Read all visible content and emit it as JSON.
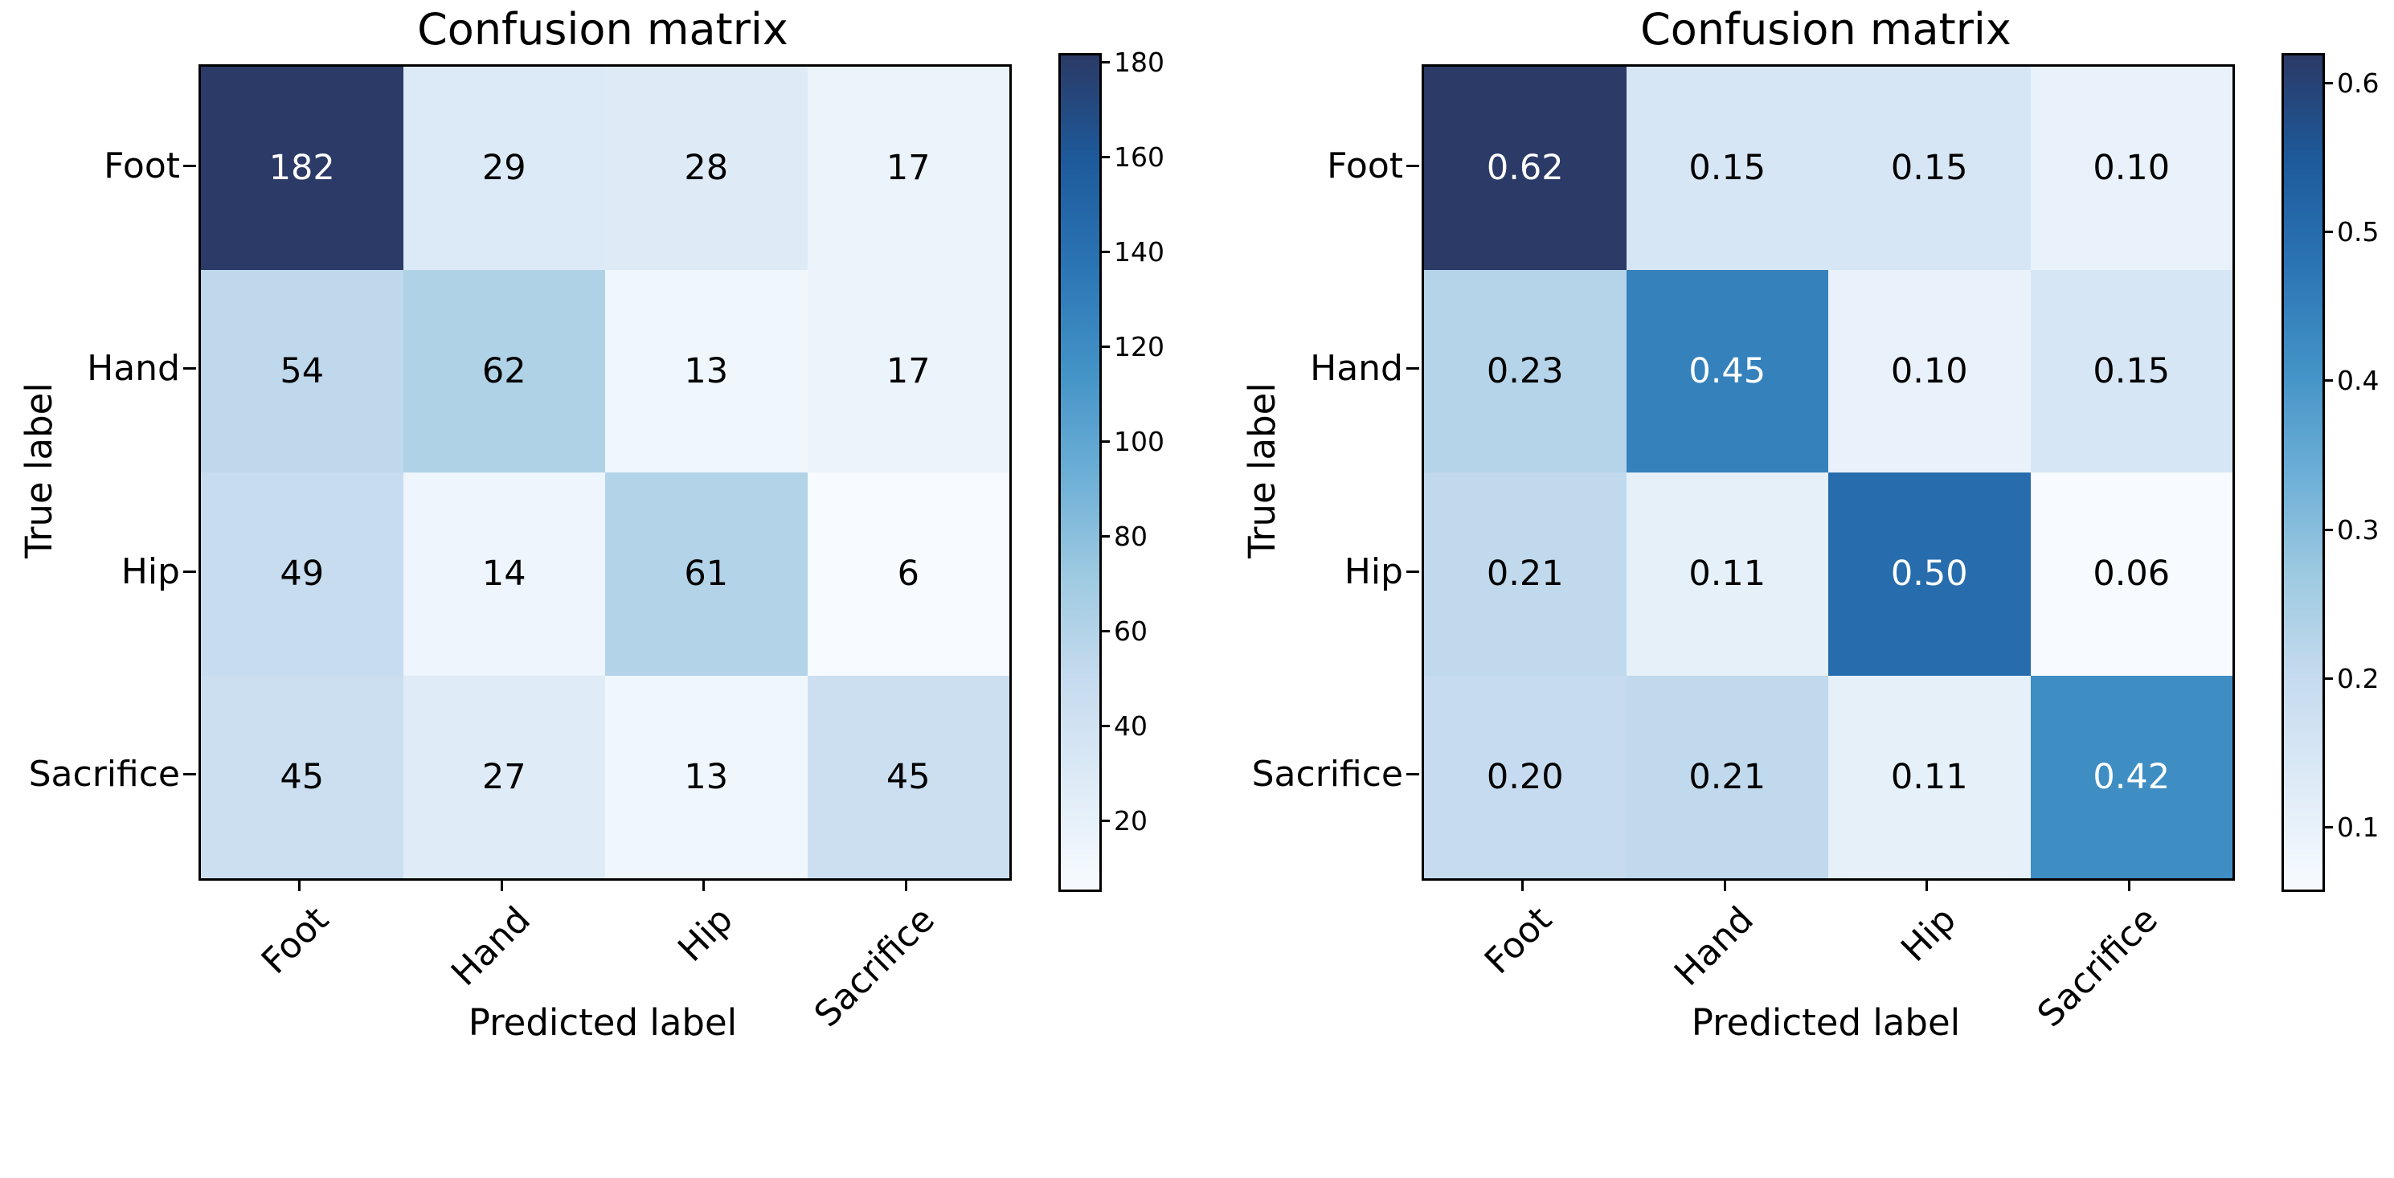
{
  "figure": {
    "background": "#ffffff",
    "colormap_name": "Blues",
    "text_color": "#000000"
  },
  "colormap": [
    {
      "t": 0,
      "c": "#f7fbff"
    },
    {
      "t": 0.125,
      "c": "#deebf7"
    },
    {
      "t": 0.25,
      "c": "#c6dbef"
    },
    {
      "t": 0.375,
      "c": "#9ecae1"
    },
    {
      "t": 0.5,
      "c": "#6baed6"
    },
    {
      "t": 0.625,
      "c": "#4292c6"
    },
    {
      "t": 0.75,
      "c": "#2b74b4"
    },
    {
      "t": 0.875,
      "c": "#1d5a9b"
    },
    {
      "t": 1,
      "c": "#2b3a66"
    }
  ],
  "chart_data": [
    {
      "type": "heatmap",
      "title": "Confusion matrix",
      "xlabel": "Predicted label",
      "ylabel": "True label",
      "x_categories": [
        "Foot",
        "Hand",
        "Hip",
        "Sacrifice"
      ],
      "y_categories": [
        "Foot",
        "Hand",
        "Hip",
        "Sacrifice"
      ],
      "values": [
        [
          182,
          29,
          28,
          17
        ],
        [
          54,
          62,
          13,
          17
        ],
        [
          49,
          14,
          61,
          6
        ],
        [
          45,
          27,
          13,
          45
        ]
      ],
      "value_format": "int",
      "vmin": 6,
      "vmax": 182,
      "cell_colors": [
        [
          "#2b3a66",
          "#dceaf7",
          "#deebf7",
          "#ebf3fb"
        ],
        [
          "#bfd8ec",
          "#b0d2e7",
          "#eff6fc",
          "#ebf3fb"
        ],
        [
          "#c7dcef",
          "#eef5fc",
          "#b2d3e8",
          "#f7fbff"
        ],
        [
          "#cbdff1",
          "#dfecf7",
          "#eff6fc",
          "#cbdff1"
        ]
      ],
      "colorbar_ticks": [
        {
          "value": 20,
          "label": "20"
        },
        {
          "value": 40,
          "label": "40"
        },
        {
          "value": 60,
          "label": "60"
        },
        {
          "value": 80,
          "label": "80"
        },
        {
          "value": 100,
          "label": "100"
        },
        {
          "value": 120,
          "label": "120"
        },
        {
          "value": 140,
          "label": "140"
        },
        {
          "value": 160,
          "label": "160"
        },
        {
          "value": 180,
          "label": "180"
        }
      ]
    },
    {
      "type": "heatmap",
      "title": "Confusion matrix",
      "xlabel": "Predicted label",
      "ylabel": "True label",
      "x_categories": [
        "Foot",
        "Hand",
        "Hip",
        "Sacrifice"
      ],
      "y_categories": [
        "Foot",
        "Hand",
        "Hip",
        "Sacrifice"
      ],
      "values": [
        [
          0.62,
          0.15,
          0.15,
          0.1
        ],
        [
          0.23,
          0.45,
          0.1,
          0.15
        ],
        [
          0.21,
          0.11,
          0.5,
          0.06
        ],
        [
          0.2,
          0.21,
          0.11,
          0.42
        ]
      ],
      "value_format": "2f",
      "vmin": 0.06,
      "vmax": 0.62,
      "cell_colors": [
        [
          "#2b3a66",
          "#d7e6f5",
          "#d7e6f5",
          "#e9f2fa"
        ],
        [
          "#b5d4e9",
          "#3581bc",
          "#e9f2fa",
          "#d7e6f5"
        ],
        [
          "#c0d9ed",
          "#e5f0f9",
          "#276dad",
          "#f7fbff"
        ],
        [
          "#c6dbef",
          "#c0d9ed",
          "#e5f0f9",
          "#3f8ec3"
        ]
      ],
      "colorbar_ticks": [
        {
          "value": 0.1,
          "label": "0.1"
        },
        {
          "value": 0.2,
          "label": "0.2"
        },
        {
          "value": 0.3,
          "label": "0.3"
        },
        {
          "value": 0.4,
          "label": "0.4"
        },
        {
          "value": 0.5,
          "label": "0.5"
        },
        {
          "value": 0.6,
          "label": "0.6"
        }
      ]
    }
  ]
}
